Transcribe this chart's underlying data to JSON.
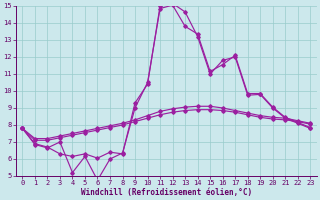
{
  "x": [
    0,
    1,
    2,
    3,
    4,
    5,
    6,
    7,
    8,
    9,
    10,
    11,
    12,
    13,
    14,
    15,
    16,
    17,
    18,
    19,
    20,
    21,
    22,
    23
  ],
  "line_smooth1": [
    7.8,
    7.1,
    7.1,
    7.25,
    7.4,
    7.55,
    7.7,
    7.85,
    8.0,
    8.2,
    8.4,
    8.6,
    8.75,
    8.85,
    8.9,
    8.9,
    8.85,
    8.75,
    8.6,
    8.45,
    8.35,
    8.3,
    8.2,
    8.05
  ],
  "line_smooth2": [
    7.8,
    7.2,
    7.2,
    7.35,
    7.5,
    7.65,
    7.8,
    7.95,
    8.1,
    8.3,
    8.55,
    8.8,
    8.95,
    9.05,
    9.1,
    9.1,
    9.0,
    8.85,
    8.7,
    8.55,
    8.45,
    8.4,
    8.25,
    8.1
  ],
  "line_jagged1": [
    7.8,
    6.9,
    6.7,
    6.3,
    6.15,
    6.3,
    6.05,
    6.4,
    6.3,
    9.3,
    10.4,
    15.0,
    15.15,
    14.65,
    13.2,
    11.0,
    11.8,
    12.0,
    9.75,
    9.8,
    9.0,
    8.4,
    8.1,
    7.8
  ],
  "line_jagged2": [
    7.8,
    6.85,
    6.65,
    7.0,
    5.2,
    6.15,
    4.75,
    6.0,
    6.35,
    9.0,
    10.5,
    14.85,
    15.05,
    13.8,
    13.35,
    11.15,
    11.55,
    12.1,
    9.85,
    9.85,
    9.05,
    8.45,
    8.15,
    7.85
  ],
  "line_color": "#9b1fa0",
  "bg_color": "#cce8ec",
  "grid_color": "#99cccc",
  "xlabel": "Windchill (Refroidissement éolien,°C)",
  "xlim": [
    -0.5,
    23.5
  ],
  "ylim": [
    5,
    15
  ],
  "yticks": [
    5,
    6,
    7,
    8,
    9,
    10,
    11,
    12,
    13,
    14,
    15
  ],
  "xticks": [
    0,
    1,
    2,
    3,
    4,
    5,
    6,
    7,
    8,
    9,
    10,
    11,
    12,
    13,
    14,
    15,
    16,
    17,
    18,
    19,
    20,
    21,
    22,
    23
  ],
  "font_color": "#660066",
  "tick_fontsize": 5.0,
  "xlabel_fontsize": 5.5
}
